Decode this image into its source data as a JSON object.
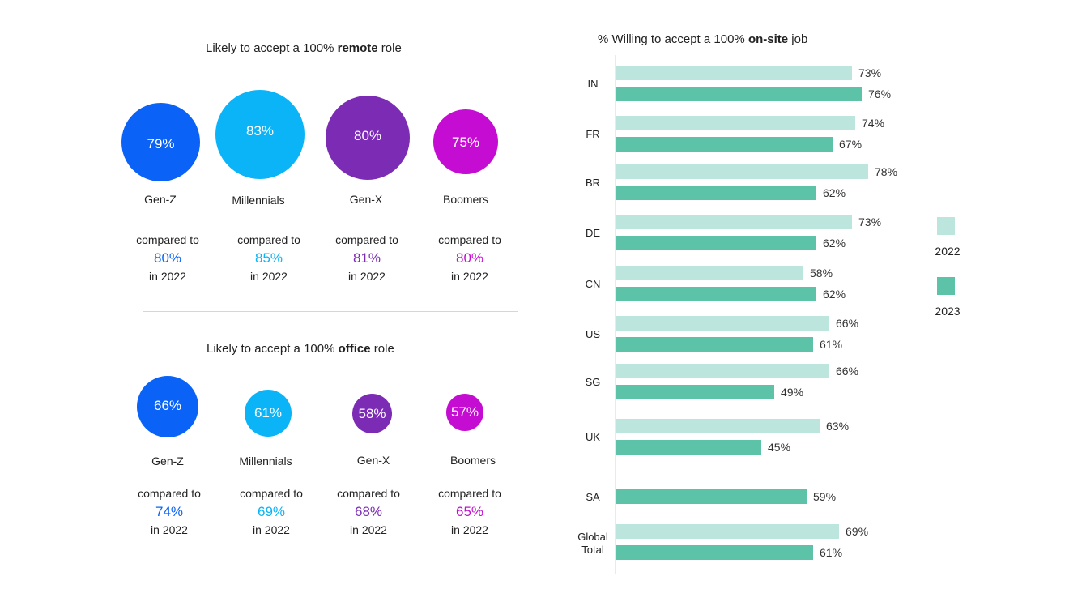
{
  "remote": {
    "title_prefix": "Likely to accept a 100% ",
    "title_bold": "remote",
    "title_suffix": " role",
    "groups": [
      {
        "name": "Gen-Z",
        "value": "79%",
        "compared_label": "compared to",
        "prior": "80%",
        "year_label": "in 2022"
      },
      {
        "name": "Millennials",
        "value": "83%",
        "compared_label": "compared to",
        "prior": "85%",
        "year_label": "in 2022"
      },
      {
        "name": "Gen-X",
        "value": "80%",
        "compared_label": "compared to",
        "prior": "81%",
        "year_label": "in 2022"
      },
      {
        "name": "Boomers",
        "value": "75%",
        "compared_label": "compared to",
        "prior": "80%",
        "year_label": "in 2022"
      }
    ]
  },
  "office": {
    "title_prefix": "Likely to accept a 100% ",
    "title_bold": "office",
    "title_suffix": " role",
    "groups": [
      {
        "name": "Gen-Z",
        "value": "66%",
        "compared_label": "compared to",
        "prior": "74%",
        "year_label": "in 2022"
      },
      {
        "name": "Millennials",
        "value": "61%",
        "compared_label": "compared to",
        "prior": "69%",
        "year_label": "in 2022"
      },
      {
        "name": "Gen-X",
        "value": "58%",
        "compared_label": "compared to",
        "prior": "68%",
        "year_label": "in 2022"
      },
      {
        "name": "Boomers",
        "value": "57%",
        "compared_label": "compared to",
        "prior": "65%",
        "year_label": "in 2022"
      }
    ]
  },
  "colors": {
    "gen_z": "#0a63f6",
    "millennials": "#0bb4f7",
    "gen_x": "#7c2bb5",
    "boomers": "#c50cd2",
    "bar_2022": "#bce6dd",
    "bar_2023": "#5cc3a8",
    "axis": "#e4e4e4"
  },
  "chart_data": [
    {
      "type": "bubble",
      "title": "Likely to accept a 100% remote role",
      "categories": [
        "Gen-Z",
        "Millennials",
        "Gen-X",
        "Boomers"
      ],
      "values": [
        79,
        83,
        80,
        75
      ],
      "compared_2022": [
        80,
        85,
        81,
        80
      ],
      "unit": "%"
    },
    {
      "type": "bubble",
      "title": "Likely to accept a 100% office role",
      "categories": [
        "Gen-Z",
        "Millennials",
        "Gen-X",
        "Boomers"
      ],
      "values": [
        66,
        61,
        58,
        57
      ],
      "compared_2022": [
        74,
        69,
        68,
        65
      ],
      "unit": "%"
    },
    {
      "type": "bar",
      "orientation": "horizontal",
      "title_prefix": "% Willing to accept a 100% ",
      "title_bold": "on-site",
      "title_suffix": " job",
      "title": "% Willing to accept a 100% on-site job",
      "categories": [
        "IN",
        "FR",
        "BR",
        "DE",
        "CN",
        "US",
        "SG",
        "UK",
        "SA",
        "Global Total"
      ],
      "category_lines": [
        [
          "IN"
        ],
        [
          "FR"
        ],
        [
          "BR"
        ],
        [
          "DE"
        ],
        [
          "CN"
        ],
        [
          "US"
        ],
        [
          "SG"
        ],
        [
          "UK"
        ],
        [
          "SA"
        ],
        [
          "Global",
          "Total"
        ]
      ],
      "series": [
        {
          "name": "2022",
          "values": [
            73,
            74,
            78,
            73,
            58,
            66,
            66,
            63,
            null,
            69
          ]
        },
        {
          "name": "2023",
          "values": [
            76,
            67,
            62,
            62,
            62,
            61,
            49,
            45,
            59,
            61
          ]
        }
      ],
      "unit": "%",
      "legend": "right"
    }
  ]
}
